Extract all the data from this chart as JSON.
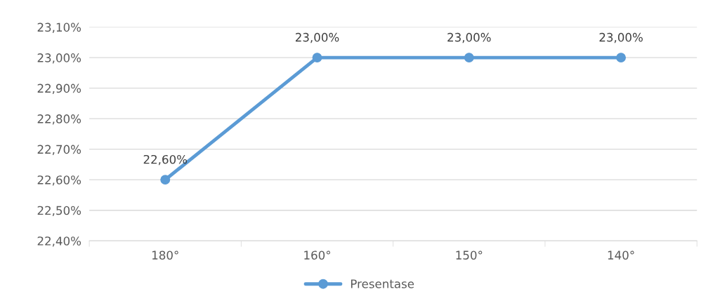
{
  "chart_data": {
    "type": "line",
    "categories": [
      "180°",
      "160°",
      "150°",
      "140°"
    ],
    "series": [
      {
        "name": "Presentase",
        "color": "#5b9bd5",
        "values": [
          22.6,
          23.0,
          23.0,
          23.0
        ],
        "value_labels": [
          "22,60%",
          "23,00%",
          "23,00%",
          "23,00%"
        ]
      }
    ],
    "ylim": [
      22.4,
      23.1
    ],
    "yticks": [
      {
        "value": 22.4,
        "label": "22,40%"
      },
      {
        "value": 22.5,
        "label": "22,50%"
      },
      {
        "value": 22.6,
        "label": "22,60%"
      },
      {
        "value": 22.7,
        "label": "22,70%"
      },
      {
        "value": 22.8,
        "label": "22,80%"
      },
      {
        "value": 22.9,
        "label": "22,90%"
      },
      {
        "value": 23.0,
        "label": "23,00%"
      },
      {
        "value": 23.1,
        "label": "23,10%"
      }
    ],
    "grid": "y",
    "legend": "bottom",
    "marker": "circle",
    "line_style": "solid"
  }
}
